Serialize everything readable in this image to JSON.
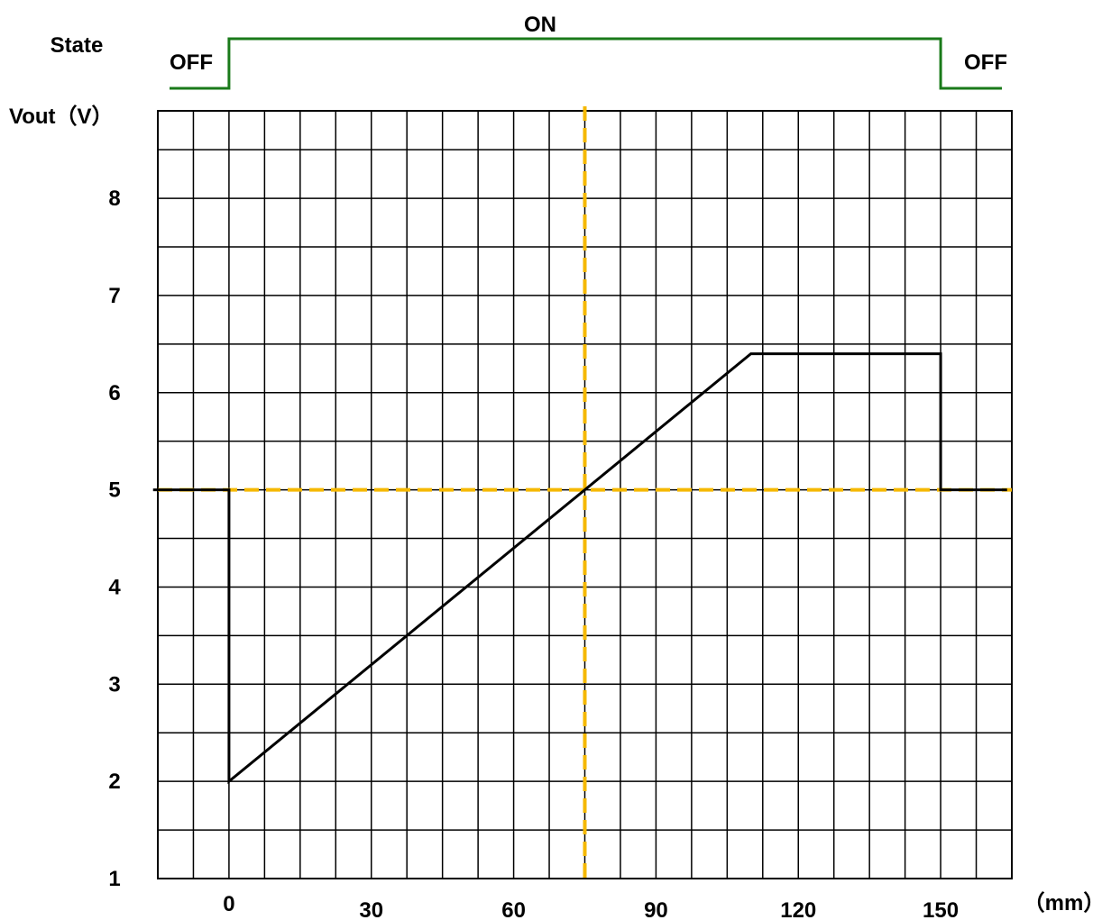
{
  "chart_data": {
    "type": "line",
    "state_label": "State",
    "state_levels": {
      "off_before": "OFF",
      "on": "ON",
      "off_after": "OFF"
    },
    "state_transitions_mm": [
      0,
      150
    ],
    "ylabel": "Vout（V）",
    "xunit": "（mm）",
    "xlim": [
      -15,
      165
    ],
    "ylim": [
      1,
      8.9
    ],
    "xticks": [
      0,
      30,
      60,
      90,
      120,
      150
    ],
    "yticks": [
      1,
      2,
      3,
      4,
      5,
      6,
      7,
      8
    ],
    "grid": true,
    "series": [
      {
        "x": [
          -16,
          0,
          0,
          110,
          150,
          150,
          164
        ],
        "y": [
          5,
          5,
          2,
          6.4,
          6.4,
          5,
          5
        ],
        "color": "#000000"
      }
    ],
    "reference_lines": [
      {
        "orientation": "horizontal",
        "value": 5,
        "style": "dashed",
        "color": "#f5b800"
      },
      {
        "orientation": "vertical",
        "value": 75,
        "style": "dashed",
        "color": "#f5b800"
      }
    ],
    "state_color": "#1a7a1a"
  }
}
